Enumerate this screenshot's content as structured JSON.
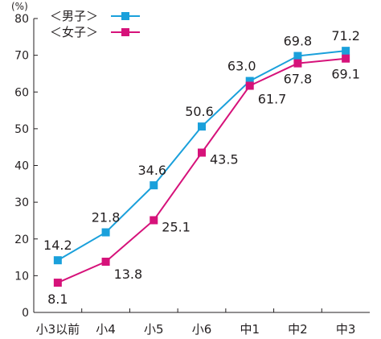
{
  "chart_data": {
    "type": "line",
    "unit": "(%)",
    "categories": [
      "小3以前",
      "小4",
      "小5",
      "小6",
      "中1",
      "中2",
      "中3"
    ],
    "ylim": [
      0,
      80
    ],
    "yticks": [
      0,
      10,
      20,
      30,
      40,
      50,
      60,
      70,
      80
    ],
    "grid": false,
    "legend_position": "top-left",
    "series": [
      {
        "name": "＜男子＞",
        "color": "#1aa0db",
        "marker": "square",
        "values": [
          14.2,
          21.8,
          34.6,
          50.6,
          63.0,
          69.8,
          71.2
        ],
        "labels": [
          "14.2",
          "21.8",
          "34.6",
          "50.6",
          "63.0",
          "69.8",
          "71.2"
        ],
        "label_side": "above"
      },
      {
        "name": "＜女子＞",
        "color": "#d6127a",
        "marker": "square",
        "values": [
          8.1,
          13.8,
          25.1,
          43.5,
          61.7,
          67.8,
          69.1
        ],
        "labels": [
          "8.1",
          "13.8",
          "25.1",
          "43.5",
          "61.7",
          "67.8",
          "69.1"
        ],
        "label_side": "below"
      }
    ]
  }
}
